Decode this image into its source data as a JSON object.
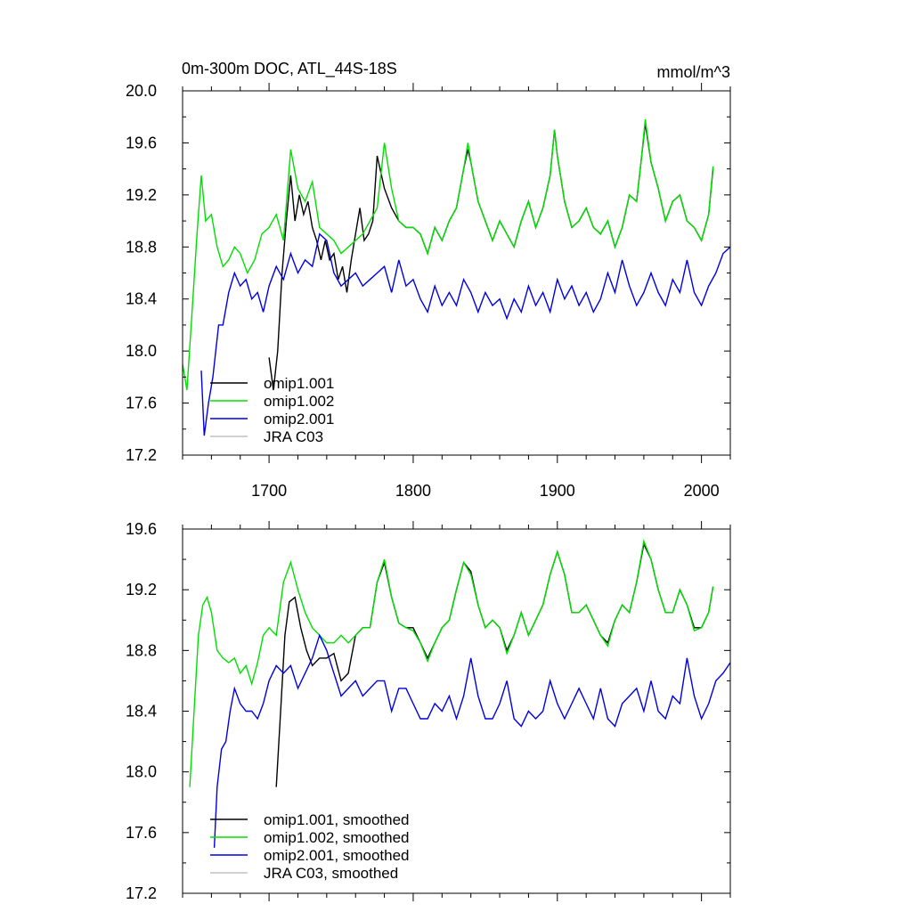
{
  "chart_data": [
    {
      "type": "line",
      "title": "0m-300m DOC, ATL_44S-18S",
      "units": "mmol/m^3",
      "xlim": [
        1640,
        2020
      ],
      "ylim": [
        17.2,
        20.0
      ],
      "x_ticks": [
        1700,
        1800,
        1900,
        2000
      ],
      "y_ticks": [
        17.2,
        17.6,
        18.0,
        18.4,
        18.8,
        19.2,
        19.6,
        20.0
      ],
      "y_tick_labels": [
        "17.2",
        "17.6",
        "18.0",
        "18.4",
        "18.8",
        "19.2",
        "19.6",
        "20.0"
      ],
      "legend_position": "bottom-left",
      "series": [
        {
          "name": "omip1.001",
          "color": "#000000",
          "x": [
            1700,
            1703,
            1706,
            1709,
            1712,
            1715,
            1718,
            1721,
            1724,
            1727,
            1730,
            1733,
            1736,
            1739,
            1742,
            1745,
            1748,
            1751,
            1754,
            1757,
            1760,
            1763,
            1766,
            1769,
            1772,
            1775,
            1780,
            1785,
            1790,
            1795,
            1800,
            1805,
            1810,
            1815,
            1820,
            1825,
            1830,
            1835,
            1838,
            1840,
            1845,
            1850,
            1855,
            1860,
            1865,
            1870,
            1875,
            1880,
            1885,
            1890,
            1895,
            1898,
            1900,
            1905,
            1910,
            1915,
            1920,
            1925,
            1930,
            1935,
            1940,
            1945,
            1950,
            1955,
            1958,
            1961,
            1965,
            1970,
            1975,
            1980,
            1985,
            1990,
            1995,
            2000,
            2005,
            2008
          ],
          "y": [
            17.95,
            17.7,
            18.0,
            18.6,
            19.0,
            19.35,
            19.0,
            19.2,
            19.05,
            19.15,
            18.95,
            18.85,
            18.7,
            18.85,
            18.7,
            18.75,
            18.55,
            18.65,
            18.45,
            18.7,
            18.9,
            19.1,
            18.85,
            18.9,
            19.0,
            19.5,
            19.25,
            19.1,
            19.0,
            18.95,
            18.95,
            18.9,
            18.75,
            18.95,
            18.85,
            19.0,
            19.1,
            19.4,
            19.55,
            19.45,
            19.15,
            19.0,
            18.85,
            19.0,
            18.9,
            18.8,
            19.0,
            19.15,
            18.95,
            19.1,
            19.35,
            19.7,
            19.5,
            19.15,
            18.95,
            19.0,
            19.1,
            18.95,
            18.9,
            19.0,
            18.8,
            18.95,
            19.2,
            19.15,
            19.45,
            19.75,
            19.45,
            19.25,
            19.0,
            19.15,
            19.2,
            19.0,
            18.95,
            18.85,
            19.05,
            19.4
          ]
        },
        {
          "name": "omip1.002",
          "color": "#00e000",
          "x": [
            1640,
            1643,
            1646,
            1650,
            1653,
            1656,
            1660,
            1664,
            1668,
            1672,
            1676,
            1680,
            1685,
            1690,
            1695,
            1700,
            1705,
            1710,
            1715,
            1720,
            1725,
            1730,
            1735,
            1740,
            1745,
            1750,
            1755,
            1760,
            1765,
            1770,
            1775,
            1780,
            1785,
            1790,
            1795,
            1800,
            1805,
            1810,
            1815,
            1820,
            1825,
            1830,
            1835,
            1838,
            1840,
            1845,
            1850,
            1855,
            1860,
            1865,
            1870,
            1875,
            1880,
            1885,
            1890,
            1895,
            1898,
            1900,
            1905,
            1910,
            1915,
            1920,
            1925,
            1930,
            1935,
            1940,
            1945,
            1950,
            1955,
            1958,
            1961,
            1965,
            1970,
            1975,
            1980,
            1985,
            1990,
            1995,
            2000,
            2005,
            2008
          ],
          "y": [
            17.9,
            17.7,
            18.2,
            18.9,
            19.35,
            19.0,
            19.05,
            18.8,
            18.65,
            18.7,
            18.8,
            18.75,
            18.6,
            18.7,
            18.9,
            18.95,
            19.05,
            18.85,
            19.55,
            19.25,
            19.15,
            19.3,
            18.95,
            18.9,
            18.85,
            18.75,
            18.8,
            18.85,
            18.9,
            19.0,
            19.1,
            19.6,
            19.25,
            19.0,
            18.95,
            18.95,
            18.9,
            18.75,
            18.95,
            18.85,
            19.0,
            19.1,
            19.4,
            19.6,
            19.45,
            19.15,
            19.0,
            18.85,
            19.0,
            18.9,
            18.8,
            19.0,
            19.15,
            18.95,
            19.1,
            19.35,
            19.7,
            19.5,
            19.15,
            18.95,
            19.0,
            19.1,
            18.95,
            18.9,
            19.0,
            18.8,
            18.95,
            19.2,
            19.15,
            19.45,
            19.78,
            19.45,
            19.25,
            19.0,
            19.15,
            19.2,
            19.0,
            18.95,
            18.85,
            19.05,
            19.42
          ]
        },
        {
          "name": "omip2.001",
          "color": "#0000e0",
          "x": [
            1653,
            1655,
            1658,
            1661,
            1665,
            1668,
            1672,
            1676,
            1680,
            1684,
            1688,
            1692,
            1696,
            1700,
            1705,
            1710,
            1715,
            1720,
            1725,
            1730,
            1735,
            1740,
            1745,
            1750,
            1755,
            1760,
            1765,
            1770,
            1775,
            1780,
            1785,
            1790,
            1795,
            1800,
            1805,
            1810,
            1815,
            1820,
            1825,
            1830,
            1835,
            1840,
            1845,
            1850,
            1855,
            1860,
            1865,
            1870,
            1875,
            1880,
            1885,
            1890,
            1895,
            1900,
            1905,
            1910,
            1915,
            1920,
            1925,
            1930,
            1935,
            1940,
            1945,
            1950,
            1955,
            1960,
            1965,
            1970,
            1975,
            1980,
            1985,
            1990,
            1995,
            2000,
            2005,
            2010,
            2015,
            2020
          ],
          "y": [
            17.85,
            17.35,
            17.6,
            17.8,
            18.2,
            18.2,
            18.45,
            18.6,
            18.5,
            18.55,
            18.4,
            18.45,
            18.3,
            18.5,
            18.65,
            18.55,
            18.75,
            18.6,
            18.7,
            18.65,
            18.9,
            18.85,
            18.6,
            18.5,
            18.55,
            18.6,
            18.5,
            18.55,
            18.6,
            18.65,
            18.45,
            18.7,
            18.5,
            18.55,
            18.4,
            18.3,
            18.5,
            18.35,
            18.45,
            18.35,
            18.55,
            18.45,
            18.3,
            18.45,
            18.35,
            18.4,
            18.25,
            18.4,
            18.3,
            18.5,
            18.35,
            18.45,
            18.3,
            18.55,
            18.4,
            18.5,
            18.35,
            18.45,
            18.3,
            18.4,
            18.6,
            18.45,
            18.7,
            18.5,
            18.35,
            18.45,
            18.6,
            18.45,
            18.35,
            18.55,
            18.45,
            18.7,
            18.45,
            18.35,
            18.5,
            18.6,
            18.75,
            18.8
          ]
        },
        {
          "name": "JRA C03",
          "color": "#c0c0c0",
          "x": [],
          "y": []
        }
      ]
    },
    {
      "type": "line",
      "xlim": [
        1640,
        2020
      ],
      "ylim": [
        17.2,
        19.6
      ],
      "x_ticks": [
        1700,
        1800,
        1900,
        2000
      ],
      "y_ticks": [
        17.2,
        17.6,
        18.0,
        18.4,
        18.8,
        19.2,
        19.6
      ],
      "y_tick_labels": [
        "17.2",
        "17.6",
        "18.0",
        "18.4",
        "18.8",
        "19.2",
        "19.6"
      ],
      "legend_position": "bottom-left",
      "series": [
        {
          "name": "omip1.001, smoothed",
          "color": "#000000",
          "x": [
            1705,
            1708,
            1711,
            1714,
            1718,
            1722,
            1726,
            1730,
            1735,
            1740,
            1745,
            1750,
            1755,
            1760,
            1765,
            1770,
            1775,
            1780,
            1785,
            1790,
            1795,
            1800,
            1805,
            1810,
            1815,
            1820,
            1825,
            1830,
            1835,
            1840,
            1845,
            1850,
            1855,
            1860,
            1865,
            1870,
            1875,
            1880,
            1885,
            1890,
            1895,
            1900,
            1905,
            1910,
            1915,
            1920,
            1925,
            1930,
            1935,
            1940,
            1945,
            1950,
            1955,
            1960,
            1965,
            1970,
            1975,
            1980,
            1985,
            1990,
            1995,
            2000,
            2005,
            2008
          ],
          "y": [
            17.9,
            18.4,
            18.9,
            19.12,
            19.15,
            18.95,
            18.8,
            18.7,
            18.75,
            18.75,
            18.78,
            18.6,
            18.65,
            18.9,
            18.95,
            18.95,
            19.25,
            19.38,
            19.15,
            18.98,
            18.95,
            18.95,
            18.85,
            18.75,
            18.85,
            18.95,
            19.0,
            19.2,
            19.38,
            19.32,
            19.1,
            18.95,
            19.0,
            18.95,
            18.8,
            18.9,
            19.05,
            18.9,
            19.0,
            19.1,
            19.3,
            19.45,
            19.3,
            19.05,
            19.05,
            19.1,
            19.0,
            18.9,
            18.85,
            19.0,
            19.1,
            19.05,
            19.25,
            19.5,
            19.4,
            19.2,
            19.05,
            19.05,
            19.2,
            19.1,
            18.95,
            18.95,
            19.05,
            19.22
          ]
        },
        {
          "name": "omip1.002, smoothed",
          "color": "#00e000",
          "x": [
            1645,
            1648,
            1651,
            1654,
            1657,
            1660,
            1664,
            1668,
            1672,
            1676,
            1680,
            1684,
            1688,
            1692,
            1696,
            1700,
            1705,
            1710,
            1715,
            1720,
            1725,
            1730,
            1735,
            1740,
            1745,
            1750,
            1755,
            1760,
            1765,
            1770,
            1775,
            1780,
            1785,
            1790,
            1795,
            1800,
            1805,
            1810,
            1815,
            1820,
            1825,
            1830,
            1835,
            1840,
            1845,
            1850,
            1855,
            1860,
            1865,
            1870,
            1875,
            1880,
            1885,
            1890,
            1895,
            1900,
            1905,
            1910,
            1915,
            1920,
            1925,
            1930,
            1935,
            1940,
            1945,
            1950,
            1955,
            1960,
            1965,
            1970,
            1975,
            1980,
            1985,
            1990,
            1995,
            2000,
            2005,
            2008
          ],
          "y": [
            17.9,
            18.4,
            18.9,
            19.1,
            19.15,
            19.05,
            18.8,
            18.75,
            18.72,
            18.75,
            18.65,
            18.7,
            18.58,
            18.72,
            18.9,
            18.95,
            18.9,
            19.25,
            19.38,
            19.2,
            19.05,
            18.95,
            18.9,
            18.85,
            18.85,
            18.9,
            18.85,
            18.9,
            18.95,
            18.95,
            19.25,
            19.4,
            19.15,
            18.98,
            18.95,
            18.93,
            18.85,
            18.73,
            18.85,
            18.95,
            19.0,
            19.2,
            19.38,
            19.3,
            19.1,
            18.95,
            19.0,
            18.95,
            18.78,
            18.9,
            19.05,
            18.9,
            19.0,
            19.1,
            19.3,
            19.45,
            19.3,
            19.05,
            19.05,
            19.1,
            19.0,
            18.9,
            18.83,
            19.0,
            19.1,
            19.05,
            19.25,
            19.52,
            19.4,
            19.2,
            19.05,
            19.05,
            19.2,
            19.1,
            18.93,
            18.95,
            19.05,
            19.22
          ]
        },
        {
          "name": "omip2.001, smoothed",
          "color": "#0000e0",
          "x": [
            1662,
            1664,
            1667,
            1670,
            1673,
            1676,
            1680,
            1684,
            1688,
            1692,
            1696,
            1700,
            1705,
            1710,
            1715,
            1720,
            1725,
            1730,
            1735,
            1740,
            1745,
            1750,
            1755,
            1760,
            1765,
            1770,
            1775,
            1780,
            1785,
            1790,
            1795,
            1800,
            1805,
            1810,
            1815,
            1820,
            1825,
            1830,
            1835,
            1840,
            1845,
            1850,
            1855,
            1860,
            1865,
            1870,
            1875,
            1880,
            1885,
            1890,
            1895,
            1900,
            1905,
            1910,
            1915,
            1920,
            1925,
            1930,
            1935,
            1940,
            1945,
            1950,
            1955,
            1960,
            1965,
            1970,
            1975,
            1980,
            1985,
            1990,
            1995,
            2000,
            2005,
            2010,
            2015,
            2020
          ],
          "y": [
            17.5,
            17.9,
            18.15,
            18.2,
            18.4,
            18.55,
            18.45,
            18.4,
            18.4,
            18.35,
            18.45,
            18.6,
            18.7,
            18.65,
            18.7,
            18.55,
            18.65,
            18.75,
            18.9,
            18.8,
            18.65,
            18.5,
            18.55,
            18.6,
            18.5,
            18.55,
            18.6,
            18.6,
            18.4,
            18.55,
            18.55,
            18.45,
            18.35,
            18.35,
            18.45,
            18.4,
            18.5,
            18.35,
            18.5,
            18.75,
            18.5,
            18.35,
            18.35,
            18.45,
            18.6,
            18.35,
            18.3,
            18.4,
            18.35,
            18.4,
            18.6,
            18.45,
            18.35,
            18.45,
            18.55,
            18.45,
            18.35,
            18.55,
            18.35,
            18.3,
            18.45,
            18.5,
            18.55,
            18.4,
            18.6,
            18.4,
            18.35,
            18.5,
            18.45,
            18.75,
            18.5,
            18.35,
            18.45,
            18.6,
            18.65,
            18.72
          ]
        },
        {
          "name": "JRA C03, smoothed",
          "color": "#c0c0c0",
          "x": [],
          "y": []
        }
      ]
    }
  ]
}
